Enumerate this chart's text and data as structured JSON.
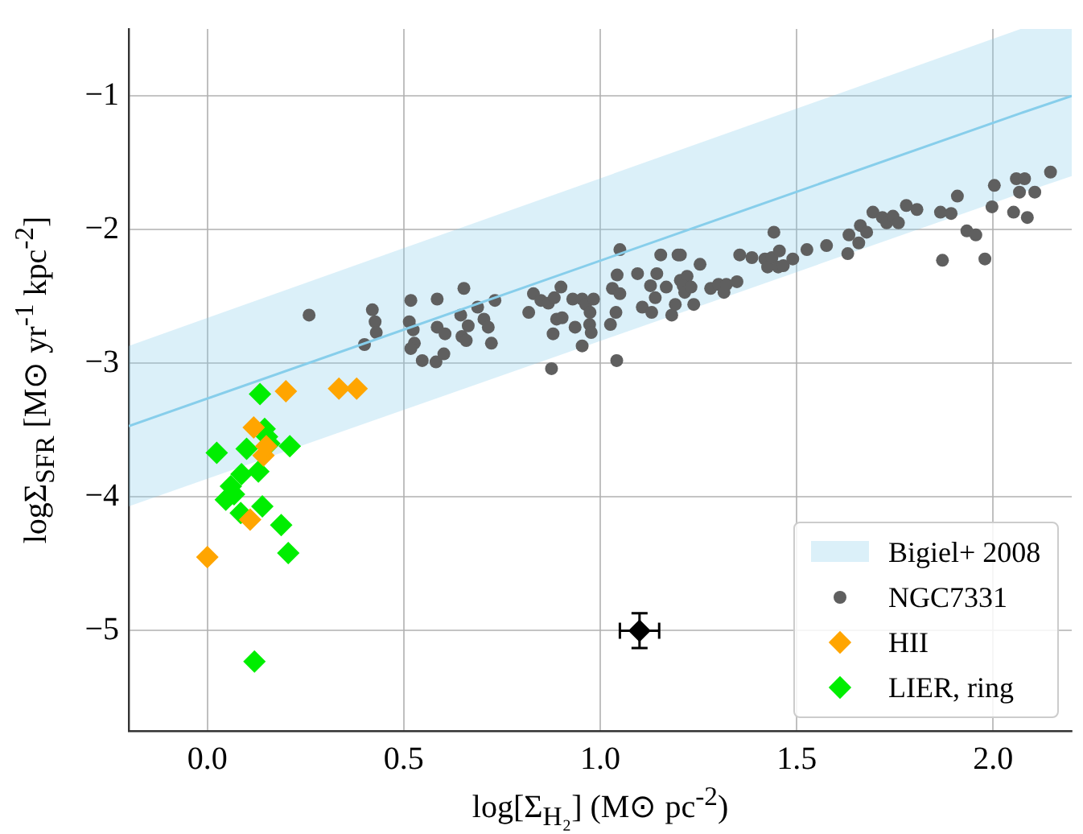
{
  "chart_data": {
    "type": "scatter",
    "xlabel": "log[Σ$_{H₂}$] (M⊙ pc$^{-2}$)",
    "ylabel": "logΣ$_{SFR}$ [M⊙ yr$^{-1}$ kpc$^{-2}$]",
    "xlim": [
      -0.2,
      2.2
    ],
    "ylim": [
      -5.75,
      -0.5
    ],
    "xticks": [
      {
        "value": 0,
        "label": "0.0"
      },
      {
        "value": 0.5,
        "label": "0.5"
      },
      {
        "value": 1,
        "label": "1.0"
      },
      {
        "value": 1.5,
        "label": "1.5"
      },
      {
        "value": 2,
        "label": "2.0"
      }
    ],
    "yticks": [
      -5,
      -4,
      -3,
      -2,
      -1
    ],
    "grid": true,
    "legend": "bottom right",
    "series": [
      {
        "name": "Bigiel+ 2008",
        "type": "line",
        "color": "#87ceeb",
        "marker": "none",
        "x": [
          -0.2,
          2.07,
          2.2
        ],
        "values": [
          -3.47,
          -1.13,
          -1.0
        ],
        "lower": [
          -4.07,
          -1.73,
          -1.6
        ],
        "upper": [
          -2.87,
          -0.5,
          -0.5
        ]
      },
      {
        "name": "NGC7331",
        "color": "#5f5f5f",
        "marker": "circle",
        "x": [
          0.259,
          0.42,
          0.427,
          0.43,
          0.4,
          0.518,
          0.514,
          0.524,
          0.527,
          0.518,
          0.547,
          0.585,
          0.585,
          0.605,
          0.582,
          0.602,
          0.653,
          0.645,
          0.664,
          0.648,
          0.659,
          0.688,
          0.704,
          0.715,
          0.723,
          0.732,
          0.818,
          0.83,
          0.849,
          0.868,
          0.883,
          0.9,
          0.889,
          0.88,
          0.903,
          0.876,
          0.93,
          0.936,
          0.954,
          0.963,
          0.974,
          0.983,
          0.973,
          0.977,
          0.954,
          1.026,
          1.031,
          1.043,
          1.05,
          1.04,
          1.05,
          1.042,
          1.095,
          1.107,
          1.131,
          1.128,
          1.144,
          1.14,
          1.154,
          1.168,
          1.182,
          1.191,
          1.198,
          1.204,
          1.204,
          1.221,
          1.211,
          1.215,
          1.231,
          1.238,
          1.254,
          1.281,
          1.301,
          1.315,
          1.321,
          1.348,
          1.355,
          1.386,
          1.419,
          1.426,
          1.442,
          1.437,
          1.456,
          1.453,
          1.466,
          1.49,
          1.526,
          1.576,
          1.63,
          1.633,
          1.658,
          1.662,
          1.678,
          1.694,
          1.718,
          1.729,
          1.745,
          1.759,
          1.779,
          1.806,
          1.866,
          1.893,
          1.909,
          1.871,
          1.933,
          1.956,
          1.979,
          1.997,
          2.003,
          2.052,
          2.059,
          2.08,
          2.067,
          2.087,
          2.106,
          2.146
        ],
        "values": [
          -2.64,
          -2.6,
          -2.69,
          -2.77,
          -2.86,
          -2.53,
          -2.69,
          -2.75,
          -2.85,
          -2.89,
          -2.98,
          -2.52,
          -2.73,
          -2.78,
          -2.99,
          -2.93,
          -2.44,
          -2.64,
          -2.72,
          -2.8,
          -2.83,
          -2.58,
          -2.67,
          -2.73,
          -2.85,
          -2.53,
          -2.62,
          -2.48,
          -2.53,
          -2.55,
          -2.51,
          -2.43,
          -2.67,
          -2.78,
          -2.66,
          -3.04,
          -2.52,
          -2.73,
          -2.52,
          -2.56,
          -2.62,
          -2.52,
          -2.71,
          -2.77,
          -2.87,
          -2.71,
          -2.44,
          -2.34,
          -2.15,
          -2.62,
          -2.48,
          -2.98,
          -2.33,
          -2.58,
          -2.62,
          -2.42,
          -2.33,
          -2.51,
          -2.19,
          -2.43,
          -2.64,
          -2.56,
          -2.19,
          -2.38,
          -2.19,
          -2.35,
          -2.42,
          -2.47,
          -2.43,
          -2.56,
          -2.26,
          -2.44,
          -2.41,
          -2.47,
          -2.41,
          -2.39,
          -2.19,
          -2.21,
          -2.22,
          -2.28,
          -2.02,
          -2.21,
          -2.16,
          -2.28,
          -2.27,
          -2.22,
          -2.15,
          -2.12,
          -2.18,
          -2.04,
          -2.1,
          -1.97,
          -2.02,
          -1.87,
          -1.91,
          -1.95,
          -1.9,
          -1.95,
          -1.82,
          -1.85,
          -1.87,
          -1.88,
          -1.75,
          -2.23,
          -2.01,
          -2.04,
          -2.22,
          -1.83,
          -1.67,
          -1.87,
          -1.62,
          -1.62,
          -1.72,
          -1.91,
          -1.72,
          -1.57
        ]
      },
      {
        "name": "HII",
        "color": "#ffa500",
        "marker": "diamond",
        "x": [
          0.0,
          0.2,
          0.335,
          0.38,
          0.118,
          0.143,
          0.109,
          0.15
        ],
        "values": [
          -4.45,
          -3.21,
          -3.19,
          -3.19,
          -3.48,
          -3.69,
          -4.17,
          -3.62
        ]
      },
      {
        "name": "LIER, ring",
        "color": "#00ee00",
        "marker": "diamond",
        "x": [
          0.134,
          0.024,
          0.1,
          0.146,
          0.152,
          0.158,
          0.21,
          0.087,
          0.13,
          0.06,
          0.047,
          0.068,
          0.085,
          0.14,
          0.188,
          0.206,
          0.12
        ],
        "values": [
          -3.23,
          -3.67,
          -3.64,
          -3.49,
          -3.55,
          -3.6,
          -3.62,
          -3.83,
          -3.81,
          -3.92,
          -4.02,
          -3.98,
          -4.12,
          -4.07,
          -4.21,
          -4.42,
          -5.23
        ]
      },
      {
        "color": "#000000",
        "marker": "diamond",
        "x": [
          1.1
        ],
        "values": [
          -5.0
        ],
        "errors": [
          0.13
        ],
        "xerrors": [
          0.05
        ]
      }
    ]
  }
}
